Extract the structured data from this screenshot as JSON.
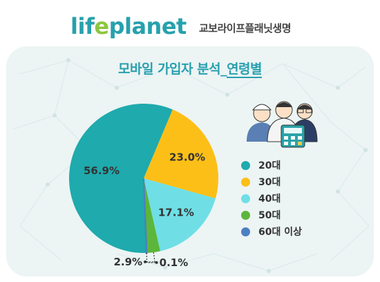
{
  "header": {
    "logo_part1": "lif",
    "logo_accent": "e",
    "logo_part2": "planet",
    "company": "교보라이프플래닛생명"
  },
  "chart_data": {
    "type": "pie",
    "title_main": "모바일 가입자 분석",
    "title_sub": "연령별",
    "slices": [
      {
        "name": "20대",
        "value": 56.9,
        "label": "56.9%",
        "color": "#1faaad"
      },
      {
        "name": "30대",
        "value": 23.0,
        "label": "23.0%",
        "color": "#fcbf17"
      },
      {
        "name": "40대",
        "value": 17.1,
        "label": "17.1%",
        "color": "#6fdfe5"
      },
      {
        "name": "50대",
        "value": 2.9,
        "label": "2.9%",
        "color": "#5cb63b"
      },
      {
        "name": "60대 이상",
        "value": 0.1,
        "label": "0.1%",
        "color": "#4c7fc3"
      }
    ]
  }
}
